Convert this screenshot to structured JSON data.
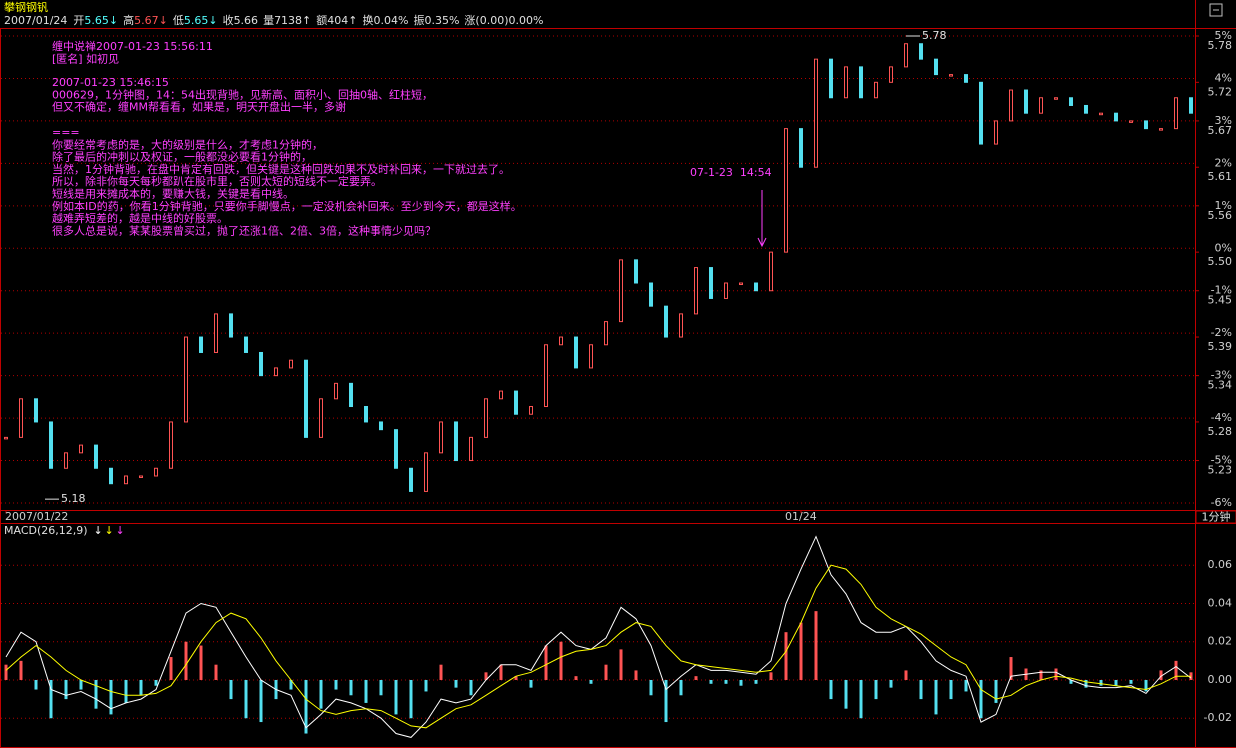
{
  "header": {
    "title": "攀钢钢钒",
    "date": "2007/01/24",
    "items": [
      {
        "label": "开",
        "value": "5.65↓",
        "color": "#54ffff"
      },
      {
        "label": "高",
        "value": "5.67↓",
        "color": "#ff5454"
      },
      {
        "label": "低",
        "value": "5.65↓",
        "color": "#54ffff"
      },
      {
        "label": "收",
        "value": "5.66",
        "color": "#e0e0e0"
      },
      {
        "label": "量",
        "value": "7138↑",
        "color": "#e0e0e0"
      },
      {
        "label": "额",
        "value": "404↑",
        "color": "#e0e0e0"
      },
      {
        "label": "换",
        "value": "0.04%",
        "color": "#e0e0e0"
      },
      {
        "label": "振",
        "value": "0.35%",
        "color": "#e0e0e0"
      },
      {
        "label": "涨",
        "value": "(0.00)0.00%",
        "color": "#e0e0e0"
      }
    ]
  },
  "note": {
    "color": "#ff40ff",
    "paragraphs": [
      [
        "缠中说禅2007-01-23 15:56:11",
        "[匿名] 如初见"
      ],
      [
        "2007-01-23 15:46:15",
        "000629，1分钟图，14：54出现背驰，见新高、面积小、回抽0轴、红柱短，",
        "但又不确定，缠MM帮看看，如果是，明天开盘出一半，多谢"
      ],
      [
        "===",
        "你要经常考虑的是，大的级别是什么，才考虑1分钟的，",
        "除了最后的冲刺以及权证，一般都没必要看1分钟的，",
        "当然，1分钟背驰，在盘中肯定有回跌，但关键是这种回跌如果不及时补回来，一下就过去了。",
        "所以，除非你每天每秒都趴在股市里，否则太短的短线不一定要弄。",
        "短线是用来摊成本的，要赚大钱，关键是看中线。",
        "例如本ID的药，你看1分钟背驰，只要你手脚慢点，一定没机会补回来。至少到今天，都是这样。",
        "越难弄短差的，越是中线的好股票。",
        "很多人总是说，某某股票曾买过，抛了还涨1倍、2倍、3倍，这种事情少见吗？"
      ]
    ]
  },
  "chart_data": [
    {
      "type": "candlestick",
      "period": "1分钟",
      "xlim": [
        0,
        79
      ],
      "xticks": [
        {
          "value": 0,
          "label": "2007/01/22"
        },
        {
          "value": 53,
          "label": "01/24"
        }
      ],
      "ylim": [
        5.175,
        5.78
      ],
      "yticks": [
        5.78,
        5.72,
        5.67,
        5.61,
        5.56,
        {
          "value": 5.5,
          "label": "5.50"
        },
        5.45,
        5.39,
        5.34,
        5.28,
        5.23
      ],
      "y2lim": [
        -6,
        5
      ],
      "y2ticks": [
        {
          "value": 5,
          "label": "5%"
        },
        {
          "value": 4,
          "label": "4%"
        },
        {
          "value": 3,
          "label": "3%"
        },
        {
          "value": 2,
          "label": "2%"
        },
        {
          "value": 1,
          "label": "1%"
        },
        {
          "value": 0,
          "label": "0%"
        },
        {
          "value": -1,
          "label": "-1%"
        },
        {
          "value": -2,
          "label": "-2%"
        },
        {
          "value": -3,
          "label": "-3%"
        },
        {
          "value": -4,
          "label": "-4%"
        },
        {
          "value": -5,
          "label": "-5%"
        },
        {
          "value": -6,
          "label": "-6%"
        }
      ],
      "grid": true,
      "series": [
        {
          "up_color": "#ff5454",
          "down_color": "#54e0f0",
          "values": [
            5.26,
            5.31,
            5.28,
            5.22,
            5.24,
            5.25,
            5.22,
            5.2,
            5.21,
            5.21,
            5.22,
            5.28,
            5.39,
            5.37,
            5.42,
            5.39,
            5.37,
            5.34,
            5.35,
            5.36,
            5.26,
            5.31,
            5.33,
            5.3,
            5.28,
            5.27,
            5.22,
            5.19,
            5.24,
            5.28,
            5.23,
            5.26,
            5.31,
            5.32,
            5.29,
            5.3,
            5.38,
            5.39,
            5.35,
            5.38,
            5.41,
            5.49,
            5.46,
            5.43,
            5.39,
            5.42,
            5.48,
            5.44,
            5.46,
            5.46,
            5.45,
            5.5,
            5.66,
            5.61,
            5.75,
            5.7,
            5.74,
            5.7,
            5.72,
            5.74,
            5.77,
            5.75,
            5.73,
            5.73,
            5.72,
            5.64,
            5.67,
            5.71,
            5.68,
            5.7,
            5.7,
            5.69,
            5.68,
            5.68,
            5.67,
            5.67,
            5.66,
            5.66,
            5.7,
            5.68
          ]
        }
      ],
      "extremes": [
        {
          "x": 2.6,
          "value": 5.18
        },
        {
          "x": 60,
          "value": 5.78
        }
      ],
      "arrow": {
        "text": "07-1-23  14:54",
        "x": 50.4,
        "color": "#ff40ff"
      }
    },
    {
      "type": "macd",
      "title": "MACD(26,12,9)",
      "xlim": [
        0,
        79
      ],
      "ylim": [
        -0.034,
        0.08
      ],
      "yticks": [
        0.06,
        0.04,
        0.02,
        {
          "value": 0,
          "label": "0.00"
        },
        -0.02
      ],
      "grid": true,
      "series": [
        {
          "label": "↓",
          "color": "#ffffff",
          "values": [
            0.012,
            0.025,
            0.02,
            -0.005,
            -0.008,
            -0.006,
            -0.01,
            -0.015,
            -0.012,
            -0.01,
            -0.005,
            0.015,
            0.035,
            0.04,
            0.038,
            0.025,
            0.012,
            0,
            -0.005,
            -0.008,
            -0.025,
            -0.018,
            -0.01,
            -0.012,
            -0.015,
            -0.02,
            -0.028,
            -0.03,
            -0.022,
            -0.01,
            -0.012,
            -0.01,
            0,
            0.008,
            0.008,
            0.005,
            0.018,
            0.025,
            0.018,
            0.016,
            0.022,
            0.038,
            0.032,
            0.018,
            -0.005,
            0.002,
            0.008,
            0.005,
            0.005,
            0.004,
            0.003,
            0.01,
            0.04,
            0.058,
            0.075,
            0.055,
            0.045,
            0.03,
            0.025,
            0.025,
            0.028,
            0.02,
            0.01,
            0.005,
            0.002,
            -0.022,
            -0.018,
            0.002,
            0.003,
            0.004,
            0.004,
            0,
            -0.003,
            -0.004,
            -0.004,
            -0.003,
            -0.007,
            0.002,
            0.007,
            0.001
          ]
        },
        {
          "label": "↓",
          "color": "#ffff00",
          "values": [
            0.005,
            0.012,
            0.018,
            0.012,
            0.005,
            0,
            -0.003,
            -0.006,
            -0.008,
            -0.008,
            -0.007,
            -0.003,
            0.008,
            0.02,
            0.03,
            0.035,
            0.032,
            0.022,
            0.01,
            0,
            -0.01,
            -0.016,
            -0.018,
            -0.016,
            -0.015,
            -0.016,
            -0.02,
            -0.024,
            -0.025,
            -0.02,
            -0.015,
            -0.013,
            -0.008,
            -0.003,
            0.002,
            0.004,
            0.008,
            0.012,
            0.015,
            0.016,
            0.018,
            0.025,
            0.03,
            0.028,
            0.018,
            0.01,
            0.008,
            0.007,
            0.006,
            0.005,
            0.004,
            0.005,
            0.015,
            0.03,
            0.048,
            0.06,
            0.058,
            0.05,
            0.038,
            0.032,
            0.028,
            0.024,
            0.018,
            0.012,
            0.008,
            -0.005,
            -0.01,
            -0.008,
            -0.003,
            0,
            0.002,
            0.001,
            -0.001,
            -0.002,
            -0.003,
            -0.004,
            -0.005,
            -0.002,
            0.002,
            0.002
          ]
        },
        {
          "label": "↓",
          "color": "#ff40ff",
          "histogram": true,
          "up_color": "#ff5454",
          "down_color": "#54e0f0",
          "values": [
            0.008,
            0.01,
            -0.005,
            -0.02,
            -0.01,
            -0.005,
            -0.015,
            -0.018,
            -0.012,
            -0.008,
            -0.003,
            0.012,
            0.02,
            0.018,
            0.008,
            -0.01,
            -0.02,
            -0.022,
            -0.01,
            -0.005,
            -0.028,
            -0.015,
            -0.005,
            -0.008,
            -0.012,
            -0.008,
            -0.018,
            -0.02,
            -0.006,
            0.008,
            -0.004,
            -0.008,
            0.004,
            0.008,
            0.002,
            -0.004,
            0.018,
            0.02,
            0.002,
            -0.002,
            0.008,
            0.016,
            0.005,
            -0.008,
            -0.022,
            -0.008,
            0.002,
            -0.002,
            -0.002,
            -0.003,
            -0.002,
            0.004,
            0.025,
            0.03,
            0.036,
            -0.01,
            -0.015,
            -0.02,
            -0.01,
            -0.004,
            0.005,
            -0.01,
            -0.018,
            -0.01,
            -0.006,
            -0.02,
            -0.012,
            0.012,
            0.006,
            0.005,
            0.006,
            -0.002,
            -0.004,
            -0.003,
            -0.003,
            -0.002,
            -0.006,
            0.005,
            0.01,
            0.004
          ]
        }
      ]
    }
  ]
}
